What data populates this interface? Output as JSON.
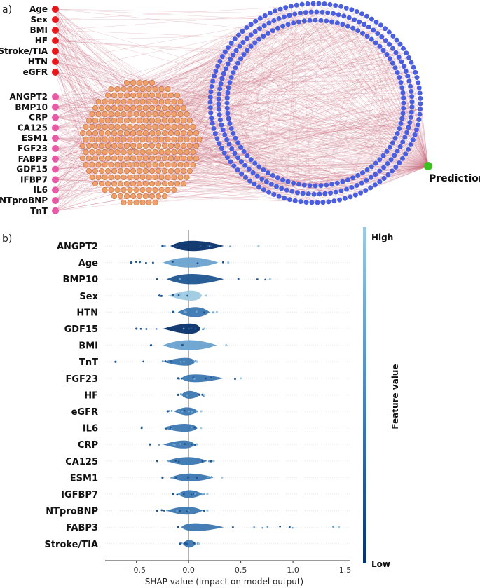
{
  "panel_a": {
    "label": "a)",
    "clinical_features": [
      "Age",
      "Sex",
      "BMI",
      "HF",
      "Stroke/TIA",
      "HTN",
      "eGFR"
    ],
    "biomarkers": [
      "ANGPT2",
      "BMP10",
      "CRP",
      "CA125",
      "ESM1",
      "FGF23",
      "FABP3",
      "GDF15",
      "IFBP7",
      "IL6",
      "NTproBNP",
      "TnT"
    ],
    "output_label": "Prediction",
    "colors": {
      "clinical": "#e8191c",
      "biomarker": "#e75aa5",
      "hidden1": "#f0a06a",
      "hidden2": "#4a5ee0",
      "output": "#3cc21f",
      "edge": "#c96b7d"
    }
  },
  "panel_b": {
    "label": "b)",
    "chart_data": {
      "type": "violin",
      "xlabel": "SHAP value (impact on model output)",
      "xlim": [
        -0.8,
        1.55
      ],
      "xticks": [
        -0.5,
        0.0,
        0.5,
        1.0,
        1.5
      ],
      "xtick_labels": [
        "−0.5",
        "0.0",
        "0.5",
        "1.0",
        "1.5"
      ],
      "colorbar": {
        "title": "Feature value",
        "high": "High",
        "low": "Low"
      },
      "features": [
        {
          "name": "ANGPT2",
          "min": -0.25,
          "max": 0.67,
          "center": 0.0
        },
        {
          "name": "Age",
          "min": -0.55,
          "max": 0.38,
          "center": 0.0
        },
        {
          "name": "BMP10",
          "min": -0.3,
          "max": 0.78,
          "center": 0.0
        },
        {
          "name": "Sex",
          "min": -0.28,
          "max": 0.17,
          "center": 0.08
        },
        {
          "name": "HTN",
          "min": -0.15,
          "max": 0.27,
          "center": 0.08
        },
        {
          "name": "GDF15",
          "min": -0.5,
          "max": 0.15,
          "center": 0.08
        },
        {
          "name": "BMI",
          "min": -0.36,
          "max": 0.36,
          "center": 0.0
        },
        {
          "name": "TnT",
          "min": -0.7,
          "max": 0.08,
          "center": 0.03
        },
        {
          "name": "FGF23",
          "min": -0.1,
          "max": 0.5,
          "center": 0.0
        },
        {
          "name": "HF",
          "min": -0.1,
          "max": 0.15,
          "center": 0.0
        },
        {
          "name": "eGFR",
          "min": -0.2,
          "max": 0.12,
          "center": 0.0
        },
        {
          "name": "IL6",
          "min": -0.45,
          "max": 0.12,
          "center": 0.0
        },
        {
          "name": "CRP",
          "min": -0.37,
          "max": 0.08,
          "center": 0.0
        },
        {
          "name": "CA125",
          "min": -0.3,
          "max": 0.24,
          "center": 0.0
        },
        {
          "name": "ESM1",
          "min": -0.25,
          "max": 0.32,
          "center": 0.0
        },
        {
          "name": "IGFBP7",
          "min": -0.15,
          "max": 0.18,
          "center": 0.0
        },
        {
          "name": "NTproBNP",
          "min": -0.3,
          "max": 0.18,
          "center": 0.0
        },
        {
          "name": "FABP3",
          "min": -0.1,
          "max": 1.44,
          "center": 0.0
        },
        {
          "name": "Stroke/TIA",
          "min": -0.08,
          "max": 0.1,
          "center": 0.0
        }
      ]
    }
  }
}
